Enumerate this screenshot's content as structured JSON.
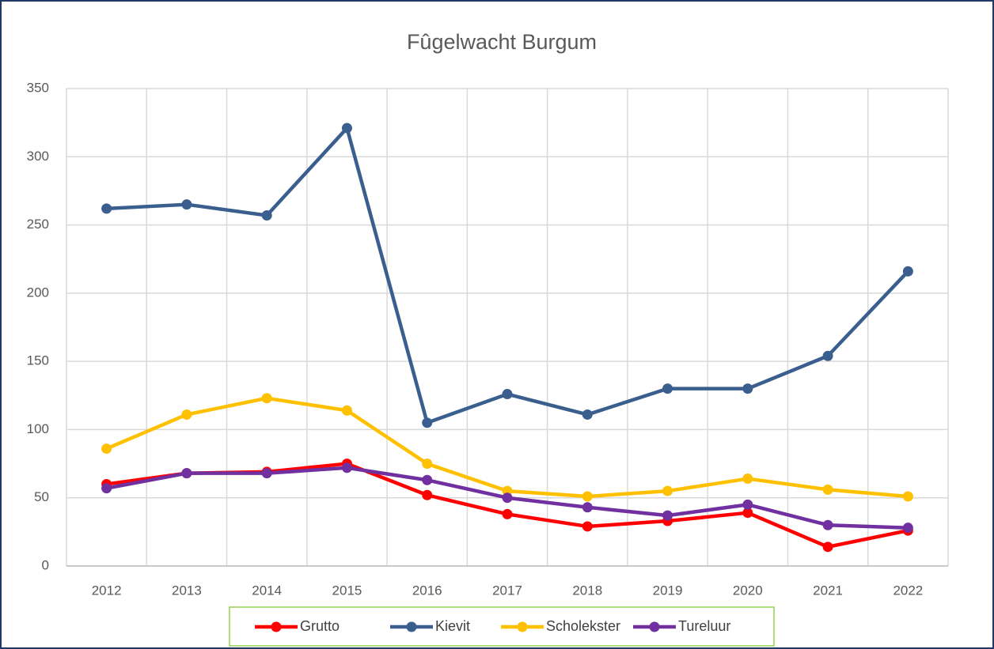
{
  "chart_data": {
    "type": "line",
    "title": "Fûgelwacht Burgum",
    "categories": [
      "2012",
      "2013",
      "2014",
      "2015",
      "2016",
      "2017",
      "2018",
      "2019",
      "2020",
      "2021",
      "2022"
    ],
    "series": [
      {
        "name": "Grutto",
        "color": "#ff0000",
        "values": [
          60,
          68,
          69,
          75,
          52,
          38,
          29,
          33,
          39,
          14,
          26
        ]
      },
      {
        "name": "Kievit",
        "color": "#3a5f8f",
        "values": [
          262,
          265,
          257,
          321,
          105,
          126,
          111,
          130,
          130,
          154,
          216
        ]
      },
      {
        "name": "Scholekster",
        "color": "#ffc000",
        "values": [
          86,
          111,
          123,
          114,
          75,
          55,
          51,
          55,
          64,
          56,
          51
        ]
      },
      {
        "name": "Tureluur",
        "color": "#7030a0",
        "values": [
          57,
          68,
          68,
          72,
          63,
          50,
          43,
          37,
          45,
          30,
          28
        ]
      }
    ],
    "ylim": [
      0,
      350
    ],
    "yticks": [
      0,
      50,
      100,
      150,
      200,
      250,
      300,
      350
    ],
    "grid": true,
    "legend": "bottom"
  }
}
